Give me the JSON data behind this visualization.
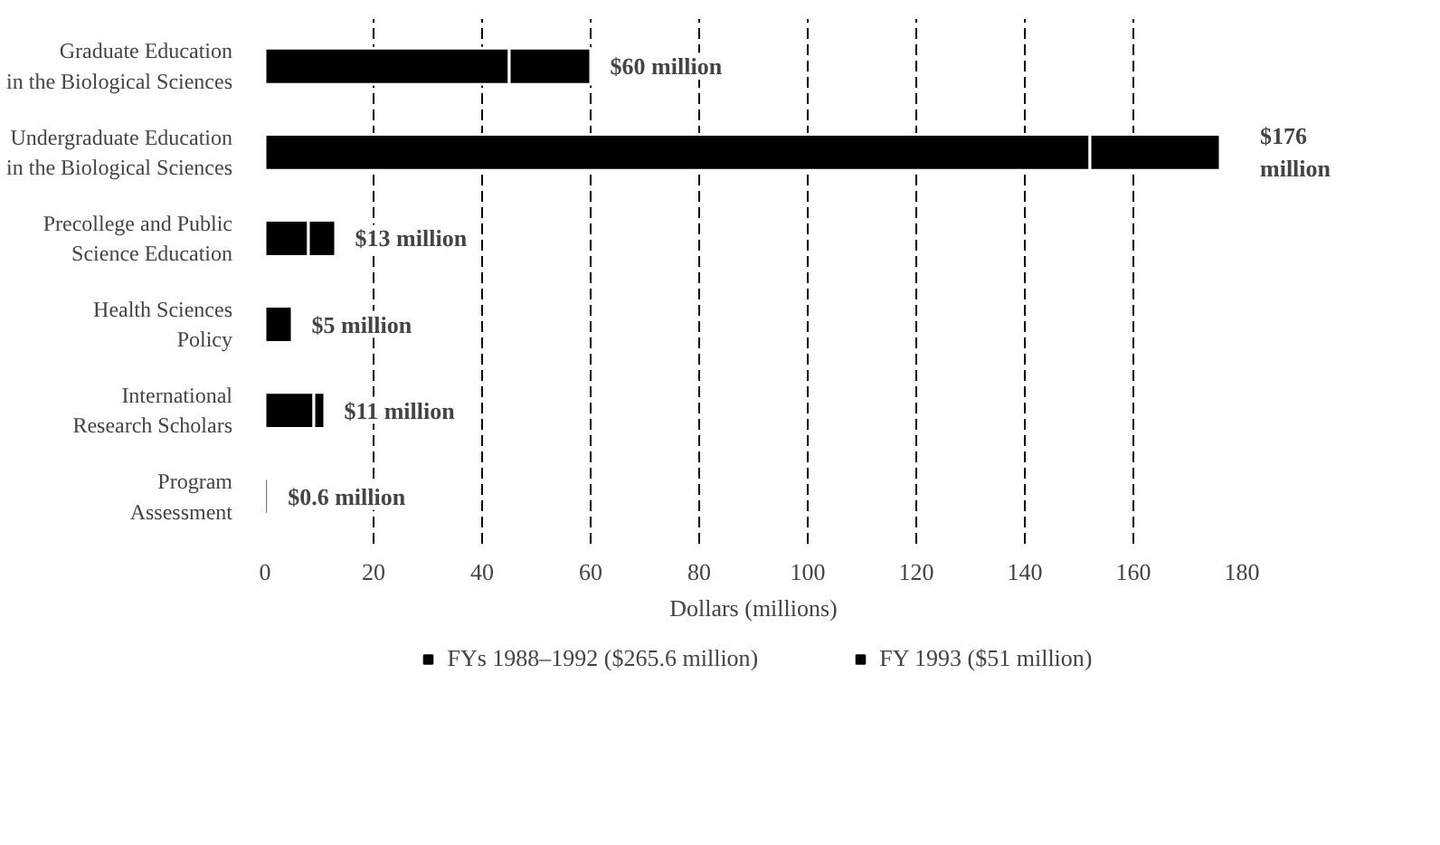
{
  "chart_data": {
    "type": "bar",
    "orientation": "horizontal",
    "stacked": true,
    "categories": [
      "Graduate Education\nin the Biological Sciences",
      "Undergraduate Education\nin the Biological Sciences",
      "Precollege and Public\nScience Education",
      "Health Sciences\nPolicy",
      "International\nResearch Scholars",
      "Program\nAssessment"
    ],
    "series": [
      {
        "name": "FYs 1988–1992 ($265.6 million)",
        "color": "#000000",
        "values": [
          45,
          152,
          8,
          5,
          9,
          0.6
        ]
      },
      {
        "name": "FY 1993 ($51 million)",
        "color": "#000000",
        "values": [
          15,
          24,
          5,
          0,
          2,
          0
        ]
      }
    ],
    "totals": [
      "$60 million",
      "$176 million",
      "$13 million",
      "$5 million",
      "$11 million",
      "$0.6 million"
    ],
    "xlabel": "Dollars (millions)",
    "xlim": [
      0,
      180
    ],
    "xticks": [
      0,
      20,
      40,
      60,
      80,
      100,
      120,
      140,
      160,
      180
    ],
    "grid": "x",
    "legend": "bottom"
  }
}
